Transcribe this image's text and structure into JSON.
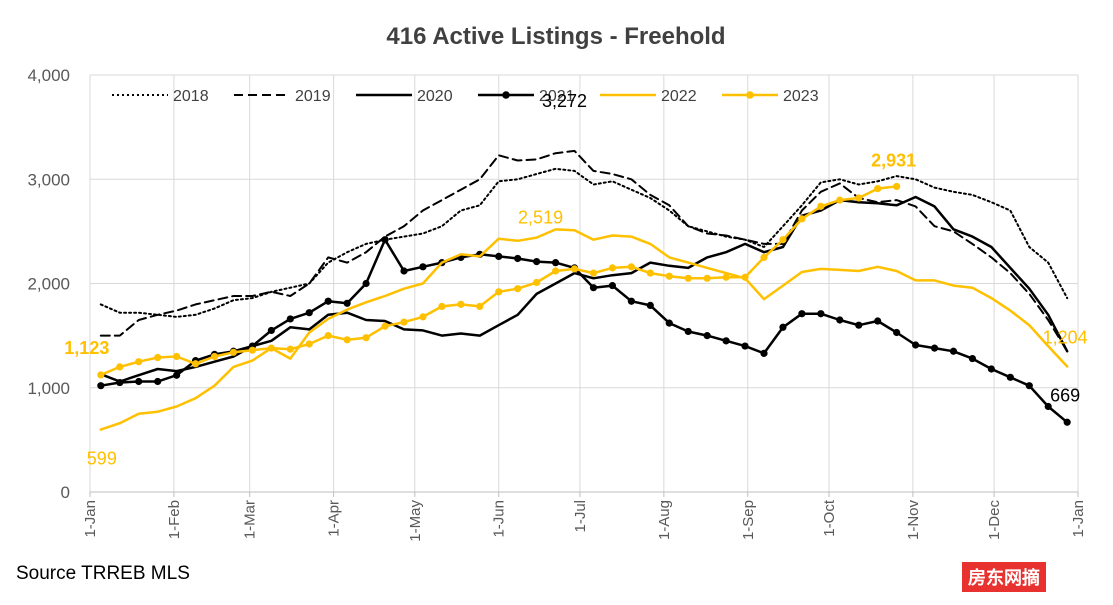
{
  "chart_data": {
    "type": "line",
    "title": "416 Active Listings - Freehold",
    "ylim": [
      0,
      4000
    ],
    "yticks": [
      0,
      1000,
      2000,
      3000,
      4000
    ],
    "ytick_labels": [
      "0",
      "1,000",
      "2,000",
      "3,000",
      "4,000"
    ],
    "xlim": [
      0,
      365
    ],
    "xticks": [
      0,
      31,
      59,
      90,
      120,
      151,
      181,
      212,
      243,
      273,
      304,
      334,
      365
    ],
    "xtick_labels": [
      "1-Jan",
      "1-Feb",
      "1-Mar",
      "1-Apr",
      "1-May",
      "1-Jun",
      "1-Jul",
      "1-Aug",
      "1-Sep",
      "1-Oct",
      "1-Nov",
      "1-Dec",
      "1-Jan"
    ],
    "grid": true,
    "legend_position": "top",
    "series": [
      {
        "name": "2018",
        "color": "#000000",
        "style": "dotted",
        "marker": false,
        "x": [
          4,
          11,
          18,
          25,
          32,
          39,
          46,
          53,
          60,
          67,
          74,
          81,
          88,
          95,
          102,
          109,
          116,
          123,
          130,
          137,
          144,
          151,
          158,
          165,
          172,
          179,
          186,
          193,
          200,
          207,
          214,
          221,
          228,
          235,
          242,
          249,
          256,
          263,
          270,
          277,
          284,
          291,
          298,
          305,
          312,
          319,
          326,
          333,
          340,
          347,
          354,
          361
        ],
        "y": [
          1800,
          1720,
          1720,
          1700,
          1680,
          1700,
          1760,
          1840,
          1860,
          1920,
          1960,
          2000,
          2200,
          2300,
          2380,
          2420,
          2450,
          2480,
          2550,
          2700,
          2750,
          2980,
          3000,
          3050,
          3100,
          3080,
          2950,
          2980,
          2900,
          2820,
          2700,
          2550,
          2500,
          2450,
          2420,
          2350,
          2550,
          2750,
          2970,
          3000,
          2950,
          2980,
          3030,
          3000,
          2920,
          2880,
          2850,
          2780,
          2700,
          2350,
          2200,
          1860
        ]
      },
      {
        "name": "2019",
        "color": "#000000",
        "style": "dashed",
        "marker": false,
        "x": [
          4,
          11,
          18,
          25,
          32,
          39,
          46,
          53,
          60,
          67,
          74,
          81,
          88,
          95,
          102,
          109,
          116,
          123,
          130,
          137,
          144,
          151,
          158,
          165,
          172,
          179,
          186,
          193,
          200,
          207,
          214,
          221,
          228,
          235,
          242,
          249,
          256,
          263,
          270,
          277,
          284,
          291,
          298,
          305,
          312,
          319,
          326,
          333,
          340,
          347,
          354,
          361
        ],
        "y": [
          1500,
          1500,
          1650,
          1700,
          1740,
          1800,
          1840,
          1880,
          1880,
          1920,
          1880,
          2000,
          2250,
          2200,
          2300,
          2450,
          2550,
          2700,
          2800,
          2900,
          3000,
          3230,
          3180,
          3190,
          3250,
          3272,
          3080,
          3050,
          3000,
          2850,
          2750,
          2550,
          2480,
          2460,
          2420,
          2380,
          2380,
          2700,
          2880,
          2960,
          2820,
          2780,
          2800,
          2740,
          2550,
          2500,
          2380,
          2250,
          2100,
          1900,
          1650,
          1350
        ]
      },
      {
        "name": "2020",
        "color": "#000000",
        "style": "solid",
        "marker": false,
        "x": [
          4,
          11,
          18,
          25,
          32,
          39,
          46,
          53,
          60,
          67,
          74,
          81,
          88,
          95,
          102,
          109,
          116,
          123,
          130,
          137,
          144,
          151,
          158,
          165,
          172,
          179,
          186,
          193,
          200,
          207,
          214,
          221,
          228,
          235,
          242,
          249,
          256,
          263,
          270,
          277,
          284,
          291,
          298,
          305,
          312,
          319,
          326,
          333,
          340,
          347,
          354,
          361
        ],
        "y": [
          1130,
          1060,
          1120,
          1180,
          1160,
          1200,
          1250,
          1300,
          1400,
          1450,
          1580,
          1560,
          1700,
          1720,
          1650,
          1640,
          1560,
          1550,
          1500,
          1520,
          1500,
          1600,
          1700,
          1900,
          2000,
          2100,
          2050,
          2080,
          2100,
          2200,
          2170,
          2150,
          2250,
          2300,
          2380,
          2300,
          2350,
          2650,
          2700,
          2800,
          2780,
          2770,
          2750,
          2830,
          2740,
          2520,
          2450,
          2350,
          2150,
          1950,
          1700,
          1350
        ]
      },
      {
        "name": "2021",
        "color": "#000000",
        "style": "solid",
        "marker": true,
        "x": [
          4,
          11,
          18,
          25,
          32,
          39,
          46,
          53,
          60,
          67,
          74,
          81,
          88,
          95,
          102,
          109,
          116,
          123,
          130,
          137,
          144,
          151,
          158,
          165,
          172,
          179,
          186,
          193,
          200,
          207,
          214,
          221,
          228,
          235,
          242,
          249,
          256,
          263,
          270,
          277,
          284,
          291,
          298,
          305,
          312,
          319,
          326,
          333,
          340,
          347,
          354,
          361
        ],
        "y": [
          1020,
          1050,
          1060,
          1060,
          1120,
          1260,
          1320,
          1350,
          1400,
          1550,
          1660,
          1720,
          1830,
          1810,
          2000,
          2420,
          2120,
          2160,
          2200,
          2250,
          2280,
          2260,
          2240,
          2210,
          2200,
          2150,
          1960,
          1980,
          1830,
          1790,
          1620,
          1540,
          1500,
          1450,
          1400,
          1330,
          1580,
          1710,
          1710,
          1650,
          1600,
          1640,
          1530,
          1410,
          1380,
          1350,
          1280,
          1180,
          1100,
          1020,
          820,
          669
        ]
      },
      {
        "name": "2022",
        "color": "#ffc000",
        "style": "solid",
        "marker": false,
        "x": [
          4,
          11,
          18,
          25,
          32,
          39,
          46,
          53,
          60,
          67,
          74,
          81,
          88,
          95,
          102,
          109,
          116,
          123,
          130,
          137,
          144,
          151,
          158,
          165,
          172,
          179,
          186,
          193,
          200,
          207,
          214,
          221,
          228,
          235,
          242,
          249,
          256,
          263,
          270,
          277,
          284,
          291,
          298,
          305,
          312,
          319,
          326,
          333,
          340,
          347,
          354,
          361
        ],
        "y": [
          599,
          660,
          750,
          770,
          820,
          900,
          1020,
          1200,
          1260,
          1380,
          1280,
          1530,
          1660,
          1750,
          1820,
          1880,
          1950,
          2000,
          2200,
          2280,
          2260,
          2430,
          2410,
          2440,
          2519,
          2510,
          2420,
          2460,
          2450,
          2380,
          2250,
          2200,
          2150,
          2100,
          2050,
          1850,
          1980,
          2110,
          2140,
          2130,
          2120,
          2160,
          2120,
          2030,
          2030,
          1980,
          1960,
          1860,
          1740,
          1600,
          1400,
          1204
        ]
      },
      {
        "name": "2023",
        "color": "#ffc000",
        "style": "solid",
        "marker": true,
        "x": [
          4,
          11,
          18,
          25,
          32,
          39,
          46,
          53,
          60,
          67,
          74,
          81,
          88,
          95,
          102,
          109,
          116,
          123,
          130,
          137,
          144,
          151,
          158,
          165,
          172,
          179,
          186,
          193,
          200,
          207,
          214,
          221,
          228,
          235,
          242,
          249,
          256,
          263,
          270,
          277,
          284,
          291,
          298
        ],
        "y": [
          1123,
          1200,
          1250,
          1290,
          1300,
          1230,
          1300,
          1340,
          1360,
          1380,
          1370,
          1420,
          1500,
          1460,
          1480,
          1590,
          1630,
          1680,
          1780,
          1800,
          1780,
          1920,
          1950,
          2010,
          2120,
          2140,
          2100,
          2150,
          2160,
          2100,
          2070,
          2050,
          2050,
          2060,
          2060,
          2250,
          2420,
          2620,
          2740,
          2800,
          2820,
          2910,
          2931
        ]
      }
    ],
    "annotations": [
      {
        "text": "3,272",
        "x": 179,
        "y": 3272,
        "color": "#000000",
        "bold": false
      },
      {
        "text": "2,519",
        "x": 172,
        "y": 2519,
        "color": "#ffc000",
        "bold": false
      },
      {
        "text": "2,931",
        "x": 298,
        "y": 2931,
        "color": "#ffc000",
        "bold": true
      },
      {
        "text": "1,123",
        "x": 4,
        "y": 1123,
        "color": "#ffc000",
        "bold": true
      },
      {
        "text": "599",
        "x": 4,
        "y": 599,
        "color": "#ffc000",
        "bold": false
      },
      {
        "text": "669",
        "x": 361,
        "y": 669,
        "color": "#000000",
        "bold": false
      },
      {
        "text": "1,204",
        "x": 361,
        "y": 1204,
        "color": "#ffc000",
        "bold": false
      }
    ]
  },
  "footer": {
    "source": "Source TRREB MLS",
    "watermark": "房东网摘"
  }
}
